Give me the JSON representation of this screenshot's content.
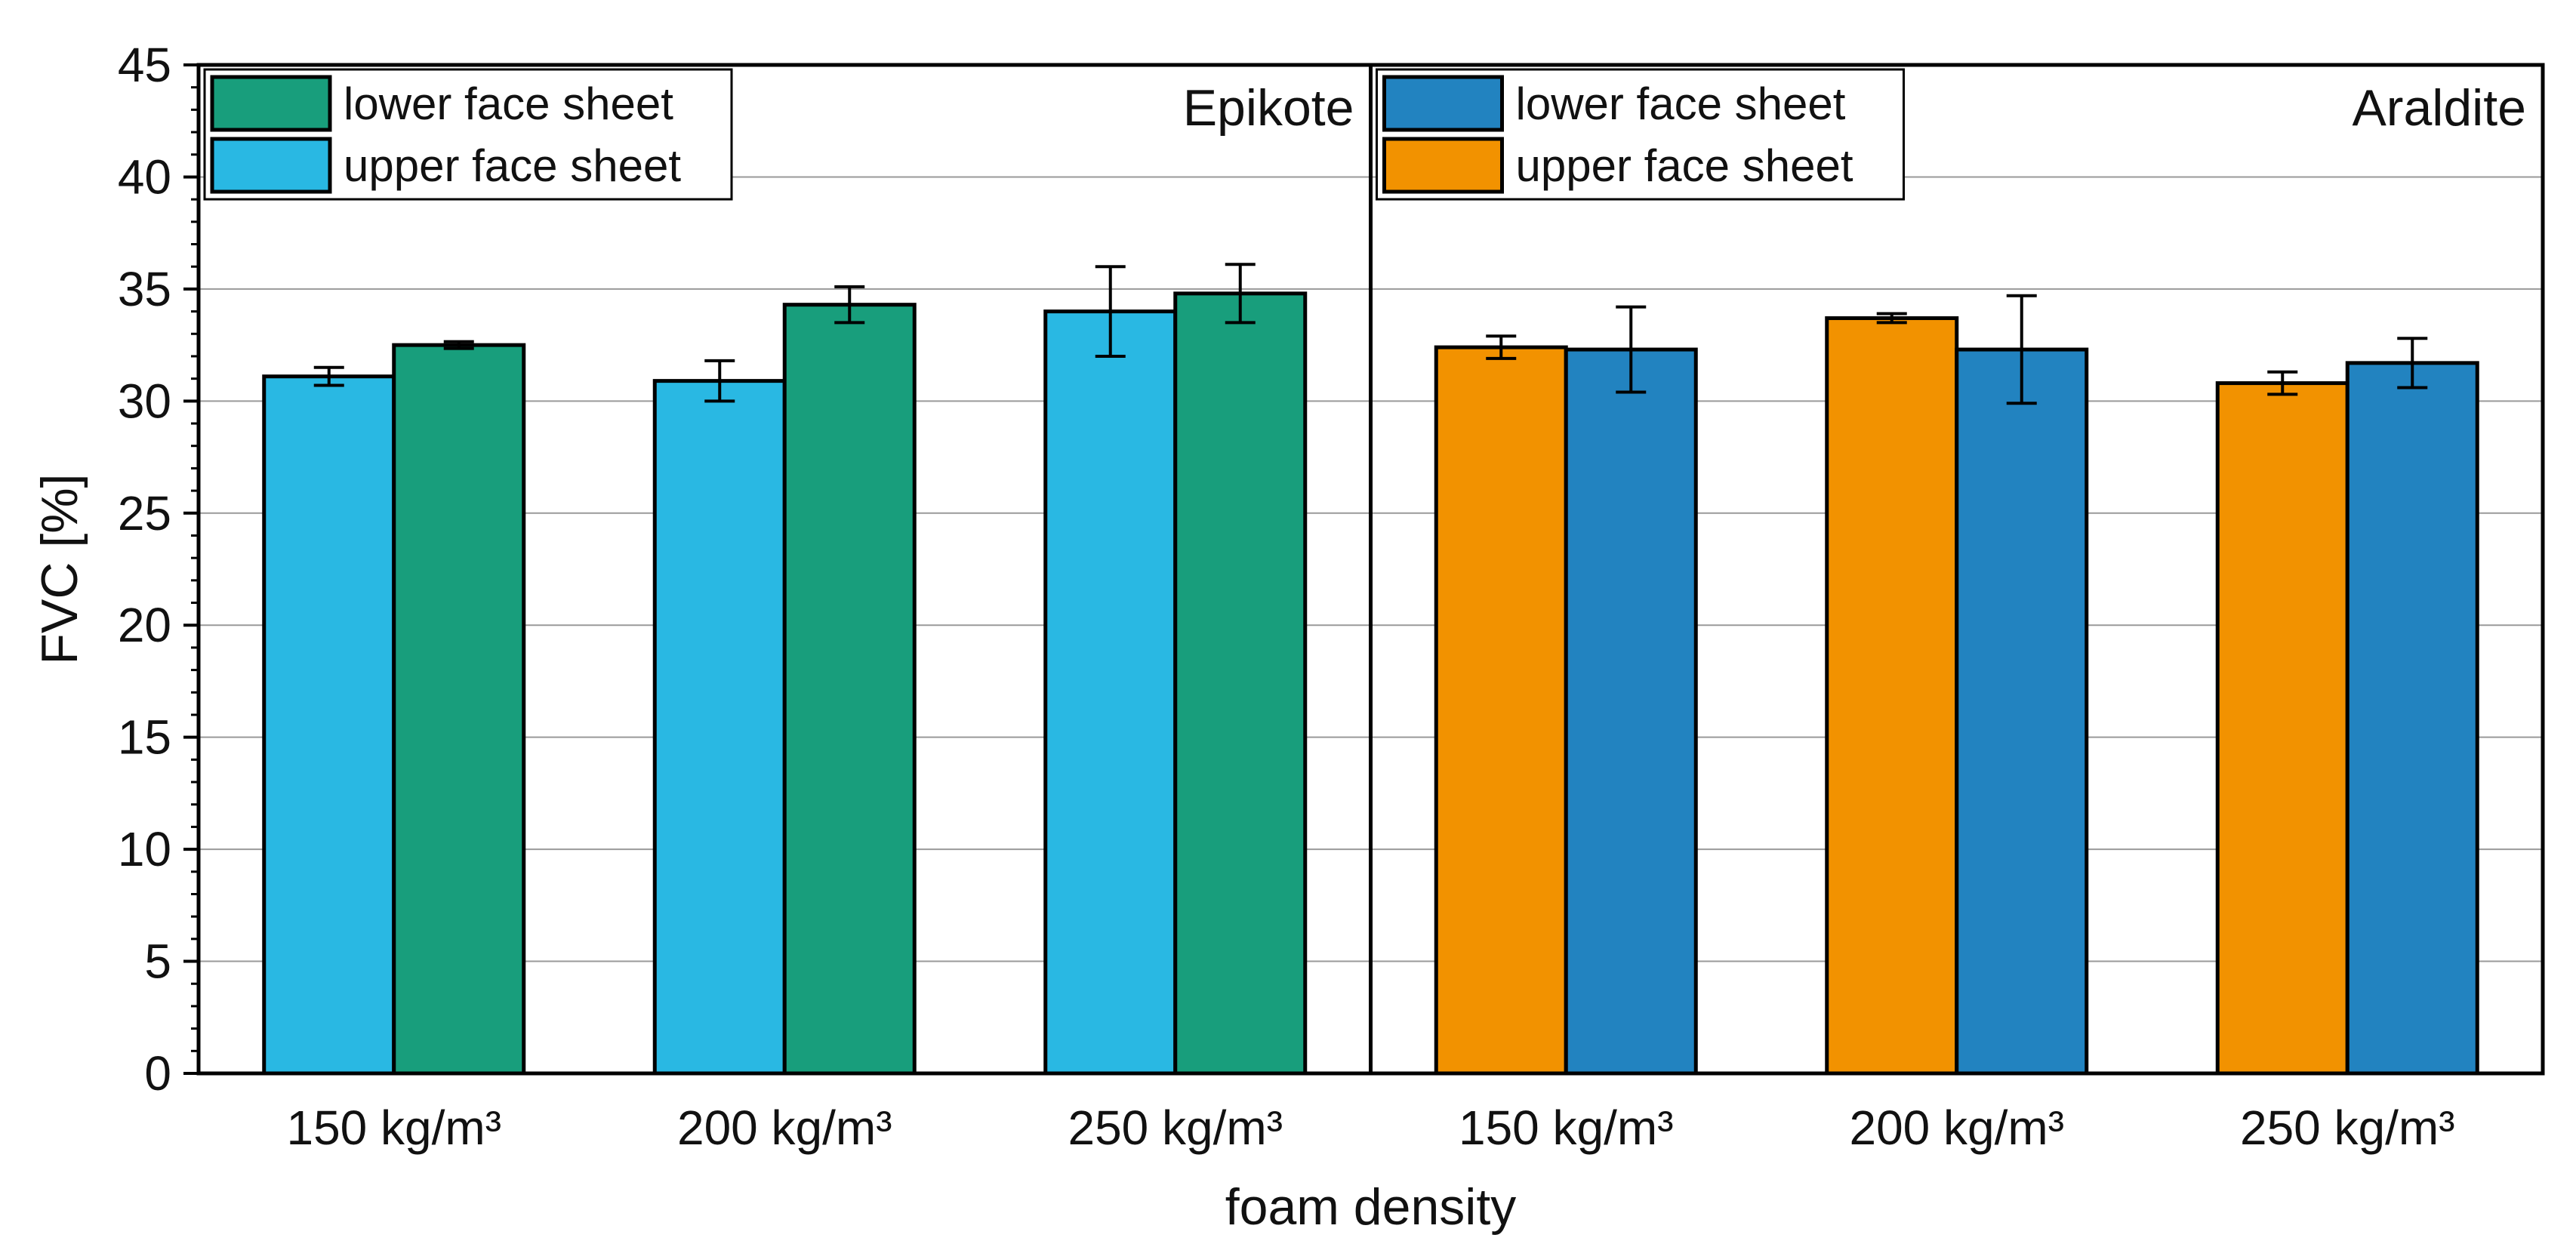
{
  "chart_data": {
    "type": "bar",
    "xlabel": "foam density",
    "ylabel": "FVC [%]",
    "ylim": [
      0,
      45
    ],
    "yticks": [
      0,
      5,
      10,
      15,
      20,
      25,
      30,
      35,
      40,
      45
    ],
    "grid": true,
    "panels": [
      {
        "title": "Epikote",
        "title_position": "top-right",
        "legend_position": "top-left",
        "categories": [
          "150 kg/m³",
          "200 kg/m³",
          "250 kg/m³"
        ],
        "series": [
          {
            "name": "upper face sheet",
            "color": "#29B8E3",
            "values": [
              31.1,
              30.9,
              34.0
            ],
            "errors": [
              0.4,
              0.9,
              2.0
            ]
          },
          {
            "name": "lower face sheet",
            "color": "#189E7C",
            "values": [
              32.5,
              34.3,
              34.8
            ],
            "errors": [
              0.15,
              0.8,
              1.3
            ]
          }
        ],
        "legend": [
          "lower face sheet",
          "upper face sheet"
        ]
      },
      {
        "title": "Araldite",
        "title_position": "top-right",
        "legend_position": "top-left",
        "categories": [
          "150 kg/m³",
          "200 kg/m³",
          "250 kg/m³"
        ],
        "series": [
          {
            "name": "upper face sheet",
            "color": "#F29200",
            "values": [
              32.4,
              33.7,
              30.8
            ],
            "errors": [
              0.5,
              0.2,
              0.5
            ]
          },
          {
            "name": "lower face sheet",
            "color": "#2283C0",
            "values": [
              32.3,
              32.3,
              31.7
            ],
            "errors": [
              1.9,
              2.4,
              1.1
            ]
          }
        ],
        "legend": [
          "lower face sheet",
          "upper face sheet"
        ]
      }
    ]
  }
}
